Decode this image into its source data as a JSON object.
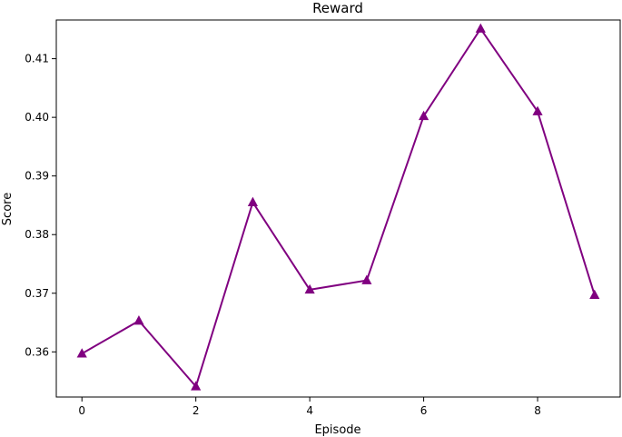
{
  "chart_data": {
    "type": "line",
    "title": "Reward",
    "xlabel": "Episode",
    "ylabel": "Score",
    "x": [
      0,
      1,
      2,
      3,
      4,
      5,
      6,
      7,
      8,
      9
    ],
    "series": [
      {
        "values": [
          0.3597,
          0.3653,
          0.3541,
          0.3855,
          0.3706,
          0.3722,
          0.4002,
          0.4151,
          0.401,
          0.3697
        ],
        "color": "#800080",
        "marker": "triangle-up"
      }
    ],
    "xlim": [
      -0.45,
      9.45
    ],
    "ylim": [
      0.3523,
      0.4166
    ],
    "x_ticks": [
      0,
      2,
      4,
      6,
      8
    ],
    "y_ticks": [
      0.36,
      0.37,
      0.38,
      0.39,
      0.4,
      0.41
    ],
    "x_tick_labels": [
      "0",
      "2",
      "4",
      "6",
      "8"
    ],
    "y_tick_labels": [
      "0.36",
      "0.37",
      "0.38",
      "0.39",
      "0.40",
      "0.41"
    ],
    "grid": false,
    "legend": "none"
  }
}
